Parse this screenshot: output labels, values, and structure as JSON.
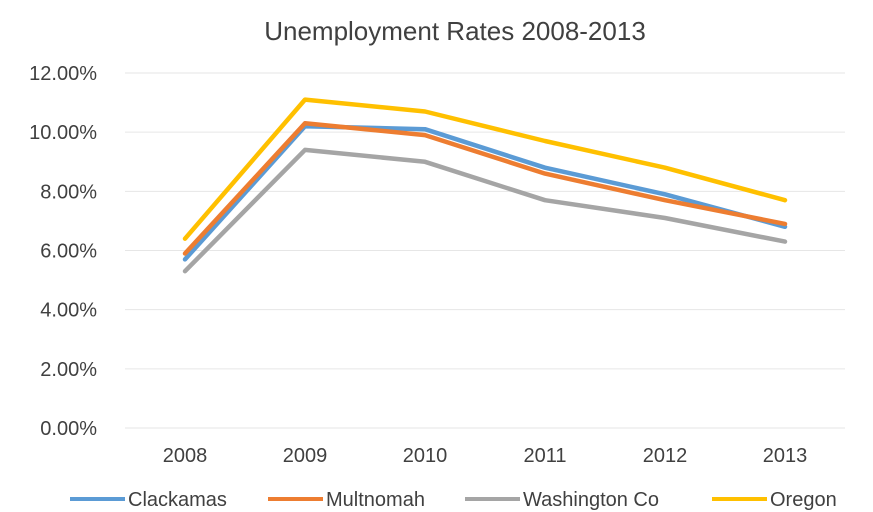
{
  "chart_data": {
    "type": "line",
    "title": "Unemployment  Rates 2008-2013",
    "xlabel": "",
    "ylabel": "",
    "categories": [
      "2008",
      "2009",
      "2010",
      "2011",
      "2012",
      "2013"
    ],
    "ylim": [
      0,
      0.12
    ],
    "y_ticks": [
      "0.00%",
      "2.00%",
      "4.00%",
      "6.00%",
      "8.00%",
      "10.00%",
      "12.00%"
    ],
    "grid": true,
    "legend_position": "bottom",
    "series": [
      {
        "name": "Clackamas",
        "color": "#5b9bd5",
        "values": [
          0.057,
          0.102,
          0.101,
          0.088,
          0.079,
          0.068
        ]
      },
      {
        "name": "Multnomah",
        "color": "#ed7d31",
        "values": [
          0.059,
          0.103,
          0.099,
          0.086,
          0.077,
          0.069
        ]
      },
      {
        "name": "Washington Co",
        "color": "#a5a5a5",
        "values": [
          0.053,
          0.094,
          0.09,
          0.077,
          0.071,
          0.063
        ]
      },
      {
        "name": "Oregon",
        "color": "#ffc000",
        "values": [
          0.064,
          0.111,
          0.107,
          0.097,
          0.088,
          0.077
        ]
      }
    ]
  }
}
